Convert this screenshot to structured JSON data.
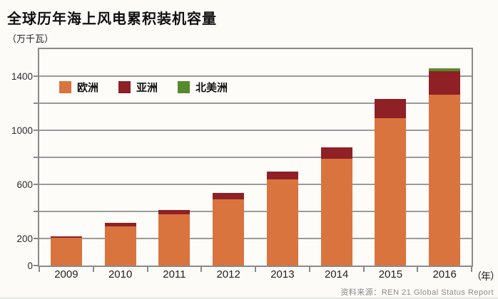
{
  "page": {
    "title": "全球历年海上风电累积装机容量",
    "unit_label": "（万千瓦）",
    "axis_year_label": "（年）",
    "source": "资料来源：REN 21  Global  Status  Report"
  },
  "chart_data": {
    "type": "bar",
    "stacked": true,
    "title": "全球历年海上风电累积装机容量",
    "ylabel": "万千瓦",
    "xlabel": "年",
    "categories": [
      "2009",
      "2010",
      "2011",
      "2012",
      "2013",
      "2014",
      "2015",
      "2016"
    ],
    "series": [
      {
        "id": "europe",
        "name": "欧洲",
        "color": "#D9743E",
        "values": [
          205,
          290,
          380,
          490,
          635,
          790,
          1090,
          1265
        ]
      },
      {
        "id": "asia",
        "name": "亚洲",
        "color": "#8F2025",
        "values": [
          10,
          25,
          30,
          45,
          60,
          85,
          140,
          170
        ]
      },
      {
        "id": "north-america",
        "name": "北美洲",
        "color": "#578A2C",
        "values": [
          0,
          0,
          0,
          0,
          0,
          0,
          0,
          25
        ]
      }
    ],
    "totals": [
      215,
      315,
      410,
      535,
      695,
      875,
      1230,
      1460
    ],
    "ylim": [
      0,
      1600
    ],
    "ytick_interval": 200,
    "ytick_labeled_values": [
      0,
      200,
      600,
      1000,
      1400
    ],
    "grid": true,
    "legend_position": "top-left-inside"
  },
  "style_colors": {
    "grid": "#9a9a9a",
    "plot_border": "#8a8a8a",
    "title_text": "#111111",
    "axis_text": "#2b2b2b",
    "source_text": "#8a8a8a"
  }
}
